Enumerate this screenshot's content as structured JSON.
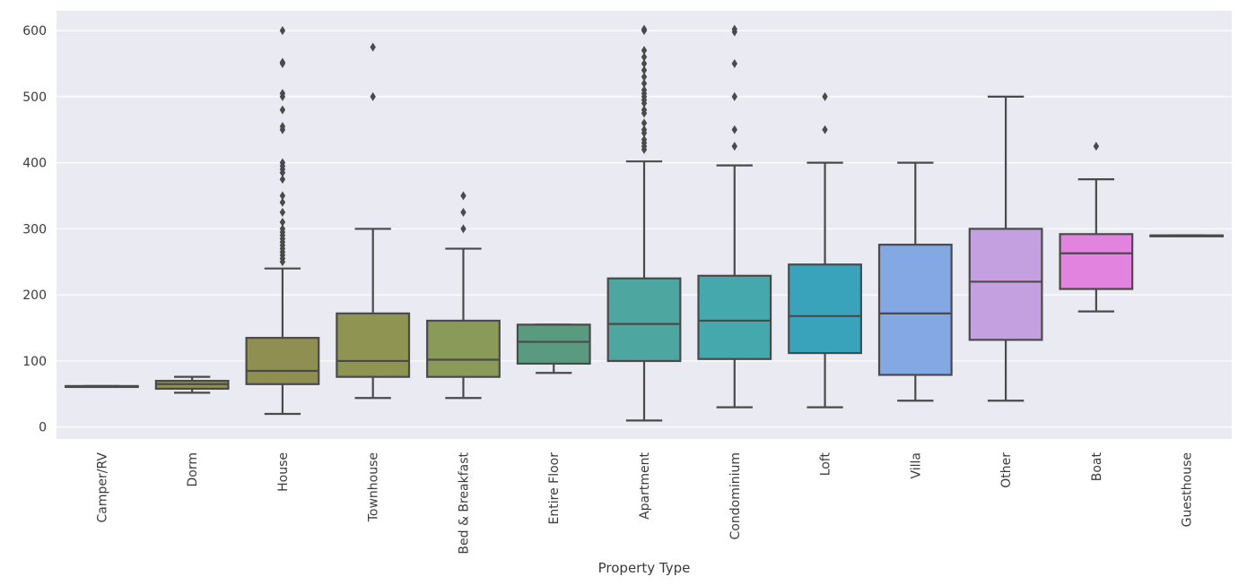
{
  "chart_data": {
    "type": "box",
    "title": "",
    "xlabel": "Property Type",
    "ylabel": "",
    "ylim": [
      -18,
      630
    ],
    "yticks": [
      0,
      100,
      200,
      300,
      400,
      500,
      600
    ],
    "grid": true,
    "legend": "none",
    "categories": [
      {
        "name": "Camper/RV",
        "color": "#b8b8b8",
        "q1": 62,
        "median": 62,
        "q3": 62,
        "whislo": 62,
        "whishi": 62,
        "fliers": []
      },
      {
        "name": "Dorm",
        "color": "#8f8f52",
        "q1": 58,
        "median": 65,
        "q3": 70,
        "whislo": 52,
        "whishi": 76,
        "fliers": []
      },
      {
        "name": "House",
        "color": "#8f8f52",
        "q1": 65,
        "median": 85,
        "q3": 135,
        "whislo": 20,
        "whishi": 240,
        "fliers": [
          250,
          255,
          260,
          265,
          270,
          275,
          280,
          285,
          290,
          295,
          300,
          310,
          325,
          340,
          350,
          375,
          385,
          390,
          395,
          400,
          450,
          455,
          480,
          500,
          505,
          550,
          552,
          600
        ]
      },
      {
        "name": "Townhouse",
        "color": "#8f9452",
        "q1": 76,
        "median": 100,
        "q3": 172,
        "whislo": 44,
        "whishi": 300,
        "fliers": [
          500,
          575
        ]
      },
      {
        "name": "Bed & Breakfast",
        "color": "#8a9a58",
        "q1": 76,
        "median": 102,
        "q3": 161,
        "whislo": 44,
        "whishi": 270,
        "fliers": [
          300,
          325,
          350
        ]
      },
      {
        "name": "Entire Floor",
        "color": "#5a9a80",
        "q1": 96,
        "median": 129,
        "q3": 155,
        "whislo": 82,
        "whishi": 155,
        "fliers": []
      },
      {
        "name": "Apartment",
        "color": "#4da6a0",
        "q1": 100,
        "median": 156,
        "q3": 225,
        "whislo": 10,
        "whishi": 402,
        "fliers": [
          420,
          425,
          430,
          435,
          445,
          450,
          460,
          475,
          480,
          490,
          495,
          500,
          505,
          510,
          520,
          530,
          540,
          550,
          560,
          570,
          600,
          602
        ]
      },
      {
        "name": "Condominium",
        "color": "#45a8ad",
        "q1": 103,
        "median": 161,
        "q3": 229,
        "whislo": 30,
        "whishi": 396,
        "fliers": [
          425,
          450,
          500,
          550,
          598,
          602
        ]
      },
      {
        "name": "Loft",
        "color": "#3aa3bc",
        "q1": 112,
        "median": 168,
        "q3": 246,
        "whislo": 30,
        "whishi": 400,
        "fliers": [
          450,
          500
        ]
      },
      {
        "name": "Villa",
        "color": "#84a8e3",
        "q1": 79,
        "median": 172,
        "q3": 276,
        "whislo": 40,
        "whishi": 400,
        "fliers": []
      },
      {
        "name": "Other",
        "color": "#c4a0e0",
        "q1": 132,
        "median": 220,
        "q3": 300,
        "whislo": 40,
        "whishi": 500,
        "fliers": []
      },
      {
        "name": "Boat",
        "color": "#e283e0",
        "q1": 209,
        "median": 263,
        "q3": 292,
        "whislo": 175,
        "whishi": 375,
        "fliers": [
          425
        ]
      },
      {
        "name": "Guesthouse",
        "color": "#d98ad0",
        "q1": 290,
        "median": 290,
        "q3": 290,
        "whislo": 290,
        "whishi": 290,
        "fliers": []
      }
    ]
  }
}
